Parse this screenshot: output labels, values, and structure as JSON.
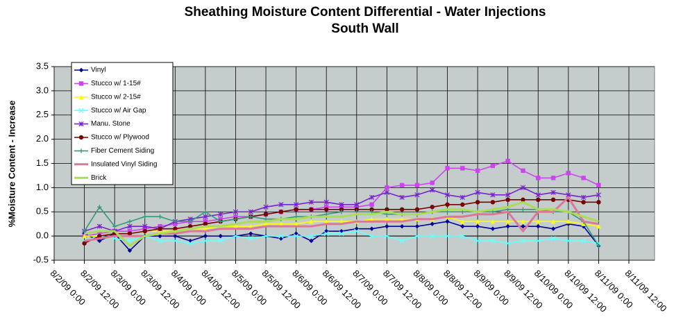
{
  "chart_data": {
    "type": "line",
    "title": [
      "Sheathing Moisture Content Differential - Water Injections",
      "South Wall"
    ],
    "y_label": "%Moisture Content - Increase",
    "x": [
      "8/2/09 12:00",
      "8/2/09 18:00",
      "8/3/09 0:00",
      "8/3/09 6:00",
      "8/3/09 12:00",
      "8/3/09 18:00",
      "8/4/09 0:00",
      "8/4/09 6:00",
      "8/4/09 12:00",
      "8/4/09 18:00",
      "8/5/09 0:00",
      "8/5/09 6:00",
      "8/5/09 12:00",
      "8/5/09 18:00",
      "8/6/09 0:00",
      "8/6/09 6:00",
      "8/6/09 12:00",
      "8/6/09 18:00",
      "8/7/09 0:00",
      "8/7/09 6:00",
      "8/7/09 12:00",
      "8/7/09 18:00",
      "8/8/09 0:00",
      "8/8/09 6:00",
      "8/8/09 12:00",
      "8/8/09 18:00",
      "8/9/09 0:00",
      "8/9/09 6:00",
      "8/9/09 12:00",
      "8/9/09 18:00",
      "8/10/09 0:00",
      "8/10/09 6:00",
      "8/10/09 12:00",
      "8/10/09 18:00",
      "8/11/09 0:00"
    ],
    "series": [
      {
        "name": "Vinyl",
        "color": "#000099",
        "marker": "diamond",
        "values": [
          0.05,
          -0.1,
          0.05,
          -0.3,
          0,
          0,
          0,
          -0.1,
          0,
          0,
          0,
          0.05,
          0,
          -0.05,
          0.05,
          -0.1,
          0.1,
          0.1,
          0.15,
          0.15,
          0.2,
          0.2,
          0.2,
          0.25,
          0.3,
          0.2,
          0.2,
          0.15,
          0.2,
          0.2,
          0.2,
          0.15,
          0.25,
          0.2,
          -0.2
        ]
      },
      {
        "name": "Stucco w/ 1-15#",
        "color": "#cc44ee",
        "marker": "square",
        "values": [
          0,
          0.05,
          0.1,
          0.1,
          0.15,
          0.2,
          0.25,
          0.3,
          0.3,
          0.35,
          0.4,
          0.4,
          0.45,
          0.5,
          0.55,
          0.55,
          0.6,
          0.6,
          0.6,
          0.65,
          1.0,
          1.05,
          1.05,
          1.1,
          1.4,
          1.4,
          1.35,
          1.45,
          1.55,
          1.35,
          1.2,
          1.2,
          1.3,
          1.2,
          1.05
        ]
      },
      {
        "name": "Stucco w/ 2-15#",
        "color": "#ffff00",
        "marker": "triangle",
        "values": [
          0,
          0,
          0.05,
          0.05,
          0.1,
          0.1,
          0.1,
          0.15,
          0.15,
          0.2,
          0.2,
          0.2,
          0.25,
          0.25,
          0.25,
          0.3,
          0.3,
          0.3,
          0.3,
          0.35,
          0.35,
          0.35,
          0.35,
          0.35,
          0.4,
          0.3,
          0.3,
          0.3,
          0.3,
          0.3,
          0.3,
          0.3,
          0.3,
          0.25,
          0.2
        ]
      },
      {
        "name": "Stucco w/ Air Gap",
        "color": "#66ffff",
        "marker": "x",
        "values": [
          -0.1,
          0,
          -0.05,
          -0.1,
          0,
          -0.1,
          -0.1,
          -0.15,
          -0.1,
          -0.1,
          0,
          -0.05,
          0,
          0,
          0,
          0,
          0.05,
          0.05,
          0.1,
          0,
          0,
          -0.1,
          0,
          0,
          0,
          0,
          -0.1,
          -0.1,
          -0.15,
          -0.1,
          -0.1,
          -0.05,
          -0.1,
          -0.1,
          -0.15
        ]
      },
      {
        "name": "Manu. Stone",
        "color": "#7722cc",
        "marker": "star",
        "values": [
          0.1,
          0.2,
          0.1,
          0.2,
          0.2,
          0.15,
          0.3,
          0.35,
          0.4,
          0.45,
          0.5,
          0.5,
          0.6,
          0.65,
          0.65,
          0.7,
          0.7,
          0.65,
          0.65,
          0.8,
          0.9,
          0.8,
          0.85,
          0.95,
          0.85,
          0.8,
          0.9,
          0.85,
          0.85,
          1.0,
          0.85,
          0.9,
          0.85,
          0.8,
          0.85
        ]
      },
      {
        "name": "Stucco w/ Plywood",
        "color": "#770000",
        "marker": "circle",
        "values": [
          -0.15,
          0,
          0.05,
          0.05,
          0.1,
          0.15,
          0.15,
          0.2,
          0.25,
          0.3,
          0.35,
          0.4,
          0.45,
          0.5,
          0.55,
          0.55,
          0.55,
          0.55,
          0.55,
          0.55,
          0.55,
          0.55,
          0.55,
          0.6,
          0.65,
          0.65,
          0.7,
          0.7,
          0.75,
          0.75,
          0.75,
          0.75,
          0.75,
          0.7,
          0.7
        ]
      },
      {
        "name": "Fiber Cement Siding",
        "color": "#339977",
        "marker": "plus",
        "values": [
          0.1,
          0.6,
          0.2,
          0.3,
          0.4,
          0.4,
          0.3,
          0.3,
          0.5,
          0.3,
          0.35,
          0.4,
          0.35,
          0.35,
          0.4,
          0.4,
          0.45,
          0.5,
          0.5,
          0.5,
          0.45,
          0.45,
          0.45,
          0.5,
          0.5,
          0.5,
          0.5,
          0.5,
          0.55,
          0.55,
          0.55,
          0.5,
          0.5,
          0.3,
          -0.2
        ]
      },
      {
        "name": "Insulated Vinyl Siding",
        "color": "#dd7799",
        "marker": "none",
        "values": [
          -0.1,
          -0.05,
          0,
          0,
          0,
          0.05,
          0.05,
          0.1,
          0.1,
          0.15,
          0.15,
          0.15,
          0.2,
          0.2,
          0.2,
          0.2,
          0.25,
          0.25,
          0.3,
          0.3,
          0.3,
          0.3,
          0.35,
          0.35,
          0.4,
          0.4,
          0.45,
          0.45,
          0.5,
          0.1,
          0.5,
          0.5,
          0.8,
          0.3,
          0.25
        ]
      },
      {
        "name": "Brick",
        "color": "#aadd55",
        "marker": "none",
        "values": [
          0.05,
          0.1,
          0.1,
          -0.2,
          0,
          0.05,
          0.1,
          0.15,
          0.2,
          0.2,
          0.25,
          0.3,
          0.3,
          0.35,
          0.35,
          0.4,
          0.4,
          0.4,
          0.45,
          0.45,
          0.5,
          0.45,
          0.45,
          0.5,
          0.55,
          0.55,
          0.5,
          0.55,
          0.6,
          0.7,
          0.55,
          0.55,
          0.5,
          0.4,
          0.3
        ]
      }
    ],
    "xlim": [
      "8/2/09 0:00",
      "8/11/09 12:00"
    ],
    "xticks": [
      "8/2/09 0:00",
      "8/2/09 12:00",
      "8/3/09 0:00",
      "8/3/09 12:00",
      "8/4/09 0:00",
      "8/4/09 12:00",
      "8/5/09 0:00",
      "8/5/09 12:00",
      "8/6/09 0:00",
      "8/6/09 12:00",
      "8/7/09 0:00",
      "8/7/09 12:00",
      "8/8/09 0:00",
      "8/8/09 12:00",
      "8/9/09 0:00",
      "8/9/09 12:00",
      "8/10/09 0:00",
      "8/10/09 12:00",
      "8/11/09 0:00",
      "8/11/09 12:00"
    ],
    "ylim": [
      -0.5,
      3.5
    ],
    "yticks": [
      {
        "value": 3.5,
        "label": "3.5"
      },
      {
        "value": 3,
        "label": "3.0"
      },
      {
        "value": 2.5,
        "label": "2.5"
      },
      {
        "value": 2,
        "label": "2.0"
      },
      {
        "value": 1.5,
        "label": "1.5"
      },
      {
        "value": 1,
        "label": "1.0"
      },
      {
        "value": 0.5,
        "label": "0.5"
      },
      {
        "value": 0,
        "label": "0.0"
      },
      {
        "value": -0.5,
        "label": "-0.5"
      }
    ],
    "grid": true,
    "legend": "upper left",
    "background": "#c4cccc"
  }
}
